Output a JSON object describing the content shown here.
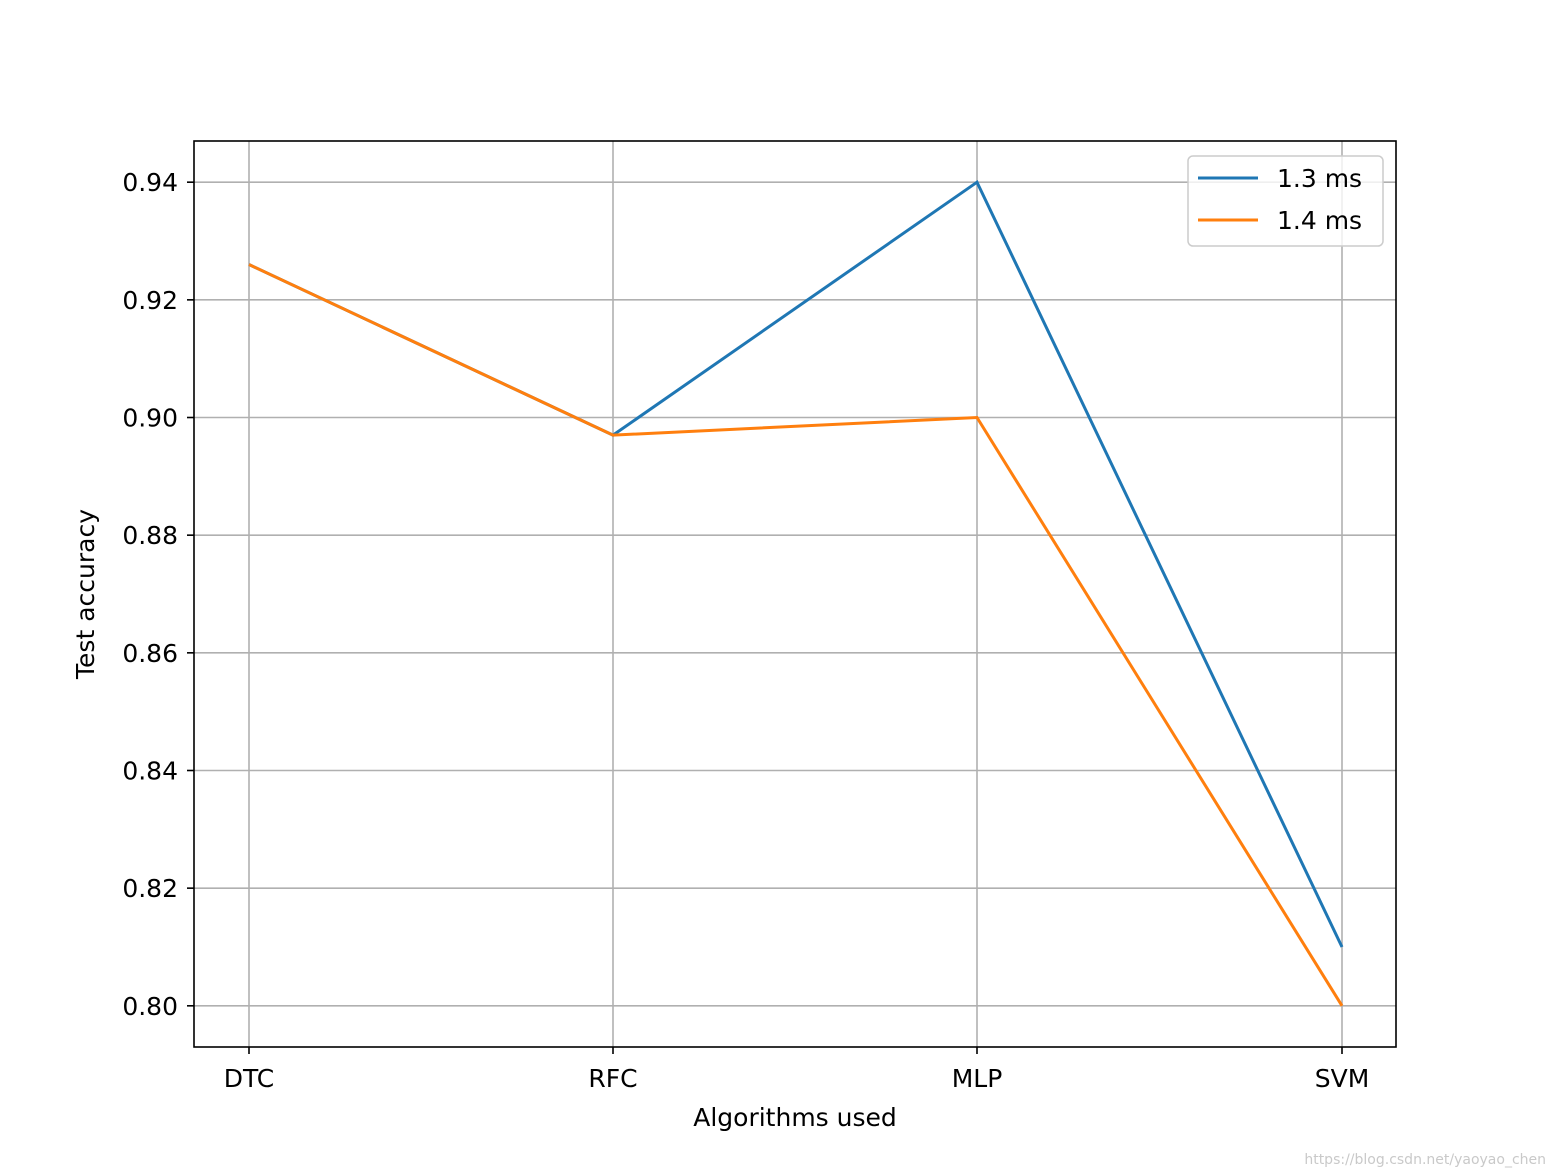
{
  "chart_data": {
    "type": "line",
    "categories": [
      "DTC",
      "RFC",
      "MLP",
      "SVM"
    ],
    "series": [
      {
        "name": "1.3 ms",
        "values": [
          0.926,
          0.897,
          0.94,
          0.81
        ],
        "color": "#1f77b4"
      },
      {
        "name": "1.4 ms",
        "values": [
          0.926,
          0.897,
          0.9,
          0.8
        ],
        "color": "#ff7f0e"
      }
    ],
    "xlabel": "Algorithms used",
    "ylabel": "Test accuracy",
    "ylim": [
      0.793,
      0.947
    ],
    "yticks": [
      "0.80",
      "0.82",
      "0.84",
      "0.86",
      "0.88",
      "0.90",
      "0.92",
      "0.94"
    ],
    "grid": true,
    "legend": "top-right"
  },
  "watermark": "https://blog.csdn.net/yaoyao_chen"
}
